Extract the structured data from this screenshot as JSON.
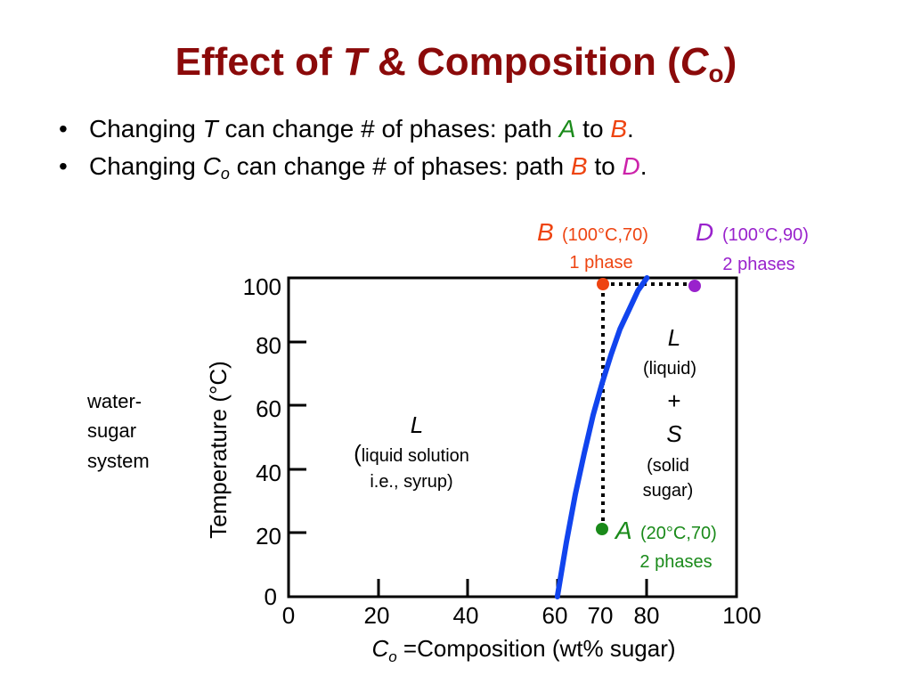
{
  "title": {
    "prefix": "Effect of ",
    "var_t": "T",
    "middle": " & Composition (",
    "var_c": "C",
    "var_c_sub": "o",
    "suffix": ")"
  },
  "bullets": [
    {
      "marker": "•",
      "text1": "Changing ",
      "var": "T",
      "text2": " can change # of phases:  path ",
      "from": "A",
      "to_word": " to ",
      "to": "B",
      "end": "."
    },
    {
      "marker": "•",
      "text1": "Changing ",
      "var": "C",
      "var_sub": "o",
      "text2": " can change # of phases: path ",
      "from": "B",
      "to_word": " to ",
      "to": "D",
      "end": "."
    }
  ],
  "side_label": [
    "water-",
    "sugar",
    "system"
  ],
  "colors": {
    "title": "#8b0a0a",
    "path_a": "#1a8a1a",
    "path_b": "#ee4411",
    "path_d": "#9922cc",
    "solubility_curve": "#1144ee"
  },
  "diagram": {
    "xlabel_var": "C",
    "xlabel_sub": "o",
    "xlabel_text": " =Composition (wt% sugar)",
    "ylabel": "Temperature (°C)",
    "x_ticks": [
      "0",
      "20",
      "40",
      "60",
      "70",
      "80",
      "100"
    ],
    "y_ticks": [
      "0",
      "20",
      "40",
      "60",
      "80",
      "100"
    ],
    "region_liquid": {
      "symbol": "L",
      "paren": "(",
      "line1": "liquid solution",
      "line2": "i.e., syrup)"
    },
    "region_two_phase": {
      "symbol1": "L",
      "desc1": "(liquid)",
      "plus": "+",
      "symbol2": "S",
      "desc2a": "(solid",
      "desc2b": "sugar)"
    },
    "points": {
      "A": {
        "label": "A",
        "coords": "(20°C,70)",
        "phases": "2 phases"
      },
      "B": {
        "label": "B",
        "coords": "(100°C,70)",
        "phases": "1 phase"
      },
      "D": {
        "label": "D",
        "coords": "(100°C,90)",
        "phases": "2 phases"
      }
    }
  },
  "chart_data": {
    "type": "line",
    "xlabel": "Co =Composition (wt% sugar)",
    "ylabel": "Temperature (°C)",
    "xlim": [
      0,
      100
    ],
    "ylim": [
      0,
      100
    ],
    "series": [
      {
        "x": [
          60,
          62,
          64,
          66,
          68,
          70,
          72,
          74,
          76,
          78,
          80
        ],
        "y": [
          0,
          17,
          32,
          45,
          57,
          67,
          76,
          84,
          90,
          96,
          100
        ]
      }
    ],
    "points": [
      {
        "label": "A",
        "x": 70,
        "y": 20
      },
      {
        "label": "B",
        "x": 70,
        "y": 100
      },
      {
        "label": "D",
        "x": 90,
        "y": 100
      }
    ]
  }
}
